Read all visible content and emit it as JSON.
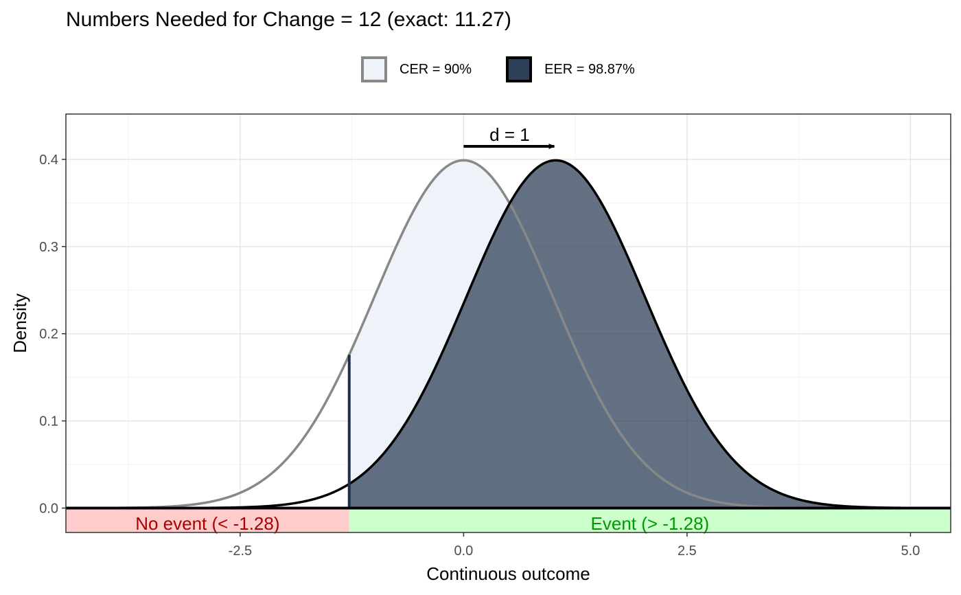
{
  "chart_data": {
    "type": "area",
    "title": "Numbers Needed for Change = 12 (exact: 11.27)",
    "xlabel": "Continuous outcome",
    "ylabel": "Density",
    "xlim": [
      -4.45,
      5.45
    ],
    "ylim": [
      -0.028,
      0.452
    ],
    "x_ticks": [
      -2.5,
      0.0,
      2.5,
      5.0
    ],
    "x_tick_labels": [
      "-2.5",
      "0.0",
      "2.5",
      "5.0"
    ],
    "y_ticks": [
      0.0,
      0.1,
      0.2,
      0.3,
      0.4
    ],
    "y_tick_labels": [
      "0.0",
      "0.1",
      "0.2",
      "0.3",
      "0.4"
    ],
    "grid": true,
    "legend_position": "top",
    "threshold": -1.28,
    "series": [
      {
        "name": "CER = 90%",
        "distribution": "normal",
        "mean": 0,
        "sd": 1,
        "fill": "#eef3f9",
        "stroke": "#888888"
      },
      {
        "name": "EER = 98.87%",
        "distribution": "normal",
        "mean": 1.03,
        "sd": 1,
        "fill": "#2e4057",
        "stroke": "#000000"
      }
    ],
    "annotations": {
      "effect": {
        "label": "d = 1",
        "from": 0,
        "to": 1.03,
        "y": 0.415
      },
      "no_event": {
        "label": "No event (< -1.28)",
        "color": "#aa0000",
        "fill": "#ffcccc"
      },
      "event": {
        "label": "Event (> -1.28)",
        "color": "#009900",
        "fill": "#ccffcc"
      }
    }
  }
}
